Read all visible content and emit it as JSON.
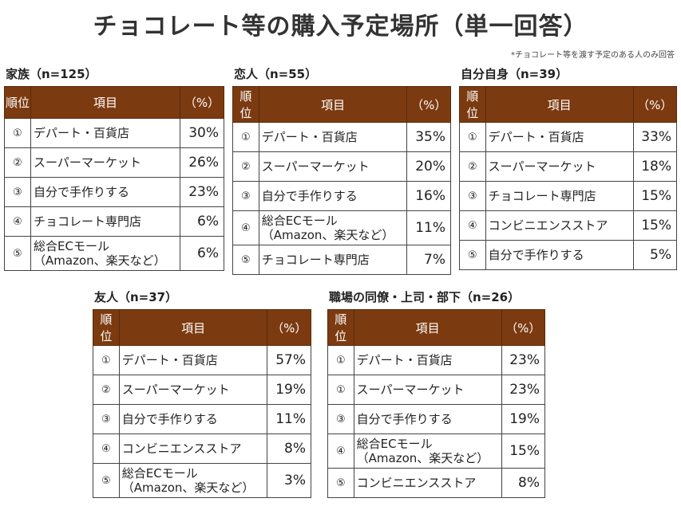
{
  "title": "チョコレート等の購入予定場所（単一回答）",
  "note": "*チョコレート等を渡す予定のある人のみ回答",
  "headers": {
    "rank": "順位",
    "item": "項目",
    "pct": "（%）"
  },
  "header_color": "#7b3a10",
  "tables": [
    {
      "label": "家族（n=125）",
      "rows": [
        [
          "①",
          "デパート・百貨店",
          "30%"
        ],
        [
          "②",
          "スーパーマーケット",
          "26%"
        ],
        [
          "③",
          "自分で手作りする",
          "23%"
        ],
        [
          "④",
          "チョコレート専門店",
          "6%"
        ],
        [
          "⑤",
          "総合ECモール\n（Amazon、楽天など）",
          "6%"
        ]
      ]
    },
    {
      "label": "恋人（n=55）",
      "rows": [
        [
          "①",
          "デパート・百貨店",
          "35%"
        ],
        [
          "②",
          "スーパーマーケット",
          "20%"
        ],
        [
          "③",
          "自分で手作りする",
          "16%"
        ],
        [
          "④",
          "総合ECモール\n（Amazon、楽天など）",
          "11%"
        ],
        [
          "⑤",
          "チョコレート専門店",
          "7%"
        ]
      ]
    },
    {
      "label": "自分自身（n=39）",
      "rows": [
        [
          "①",
          "デパート・百貨店",
          "33%"
        ],
        [
          "②",
          "スーパーマーケット",
          "18%"
        ],
        [
          "③",
          "チョコレート専門店",
          "15%"
        ],
        [
          "④",
          "コンビニエンスストア",
          "15%"
        ],
        [
          "⑤",
          "自分で手作りする",
          "5%"
        ]
      ]
    },
    {
      "label": "友人（n=37）",
      "rows": [
        [
          "①",
          "デパート・百貨店",
          "57%"
        ],
        [
          "②",
          "スーパーマーケット",
          "19%"
        ],
        [
          "③",
          "自分で手作りする",
          "11%"
        ],
        [
          "④",
          "コンビニエンスストア",
          "8%"
        ],
        [
          "⑤",
          "総合ECモール\n（Amazon、楽天など）",
          "3%"
        ]
      ]
    },
    {
      "label": "職場の同僚・上司・部下（n=26）",
      "rows": [
        [
          "①",
          "デパート・百貨店",
          "23%"
        ],
        [
          "①",
          "スーパーマーケット",
          "23%"
        ],
        [
          "③",
          "自分で手作りする",
          "19%"
        ],
        [
          "④",
          "総合ECモール\n（Amazon、楽天など）",
          "15%"
        ],
        [
          "⑤",
          "コンビニエンスストア",
          "8%"
        ]
      ]
    }
  ]
}
